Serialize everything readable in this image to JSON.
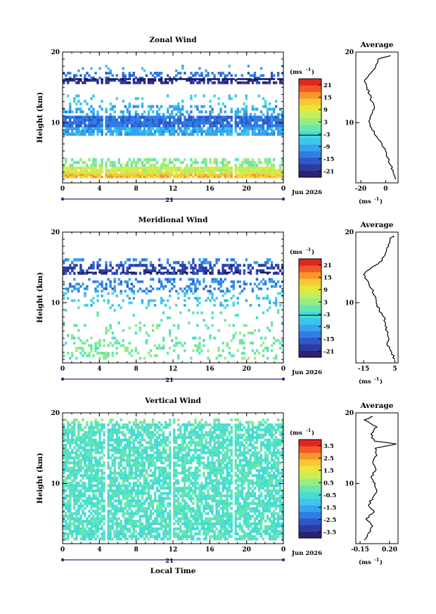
{
  "colors": {
    "scale": [
      "#2b2270",
      "#2e3aa0",
      "#2e58c8",
      "#2f7ee6",
      "#37a3f0",
      "#3cc6ee",
      "#45dcd6",
      "#66e6b0",
      "#99ec80",
      "#c6ee58",
      "#e8e63c",
      "#f8c832",
      "#f8962c",
      "#f25828",
      "#e0261f"
    ],
    "axis": "#000000",
    "time_axis": "#2a2a80"
  },
  "chart_data": [
    {
      "type": "heatmap",
      "title": "Zonal Wind",
      "ylabel": "Height (km)",
      "xlabel": "",
      "xlim": [
        0,
        24
      ],
      "ylim": [
        1.5,
        20
      ],
      "xticks": [
        "0",
        "4",
        "8",
        "12",
        "16",
        "20",
        "0"
      ],
      "yticks": [
        "10",
        "20"
      ],
      "date_label": "21",
      "month_label": "Jun 2026",
      "colorbar": {
        "unit": "(ms",
        "unit_exp": "-1",
        "unit_close": ")",
        "range": [
          -24,
          24
        ],
        "ticks": [
          "21",
          "15",
          "9",
          "3",
          "-3",
          "-9",
          "-15",
          "-21"
        ],
        "line_at": -3.5
      },
      "layers": [
        {
          "y": [
            2.2,
            2.8
          ],
          "value": 13,
          "coverage": 0.97
        },
        {
          "y": [
            2.8,
            3.8
          ],
          "value": 7,
          "coverage": 0.95
        },
        {
          "y": [
            3.8,
            5.0
          ],
          "value": 2,
          "coverage": 0.5
        },
        {
          "y": [
            8.2,
            9.4
          ],
          "value": -9,
          "coverage": 0.85
        },
        {
          "y": [
            9.4,
            11.0
          ],
          "value": -14,
          "coverage": 0.92
        },
        {
          "y": [
            11.0,
            12.5
          ],
          "value": -9,
          "coverage": 0.35
        },
        {
          "y": [
            12.5,
            14.0
          ],
          "value": -5,
          "coverage": 0.12
        },
        {
          "y": [
            15.5,
            16.2
          ],
          "value": -20,
          "coverage": 0.6
        },
        {
          "y": [
            16.2,
            17.2
          ],
          "value": -14,
          "coverage": 0.3
        },
        {
          "y": [
            17.2,
            18.2
          ],
          "value": -8,
          "coverage": 0.06
        }
      ],
      "dark_band": {
        "y": 16.2,
        "coverage": 0.8
      },
      "gaps_x": [
        4.6,
        18.6
      ],
      "average": {
        "title": "Average",
        "xlabel": "(ms",
        "xlabel_exp": "-1",
        "xlabel_close": ")",
        "xticks": [
          "-20",
          "0"
        ],
        "xtick_values": [
          -20,
          0
        ],
        "xlim": [
          -24,
          10
        ],
        "yticks": [
          "10",
          "20"
        ],
        "profile": [
          [
            8,
            2
          ],
          [
            6,
            3
          ],
          [
            4,
            4
          ],
          [
            2,
            5
          ],
          [
            0,
            6
          ],
          [
            -3,
            7
          ],
          [
            -7,
            8
          ],
          [
            -11,
            9
          ],
          [
            -13,
            10
          ],
          [
            -12,
            11
          ],
          [
            -9,
            12
          ],
          [
            -11,
            13
          ],
          [
            -13,
            14
          ],
          [
            -15,
            15
          ],
          [
            -17,
            16
          ],
          [
            -12,
            17
          ],
          [
            -8,
            18
          ],
          [
            -6,
            19
          ],
          [
            4,
            19.5
          ]
        ]
      }
    },
    {
      "type": "heatmap",
      "title": "Meridional Wind",
      "ylabel": "Height (km)",
      "xlabel": "",
      "xlim": [
        0,
        24
      ],
      "ylim": [
        1.5,
        20
      ],
      "xticks": [
        "0",
        "4",
        "8",
        "12",
        "16",
        "20",
        "0"
      ],
      "yticks": [
        "10",
        "20"
      ],
      "date_label": "21",
      "month_label": "Jun 2026",
      "colorbar": {
        "unit": "(ms",
        "unit_exp": "-1",
        "unit_close": ")",
        "range": [
          -24,
          24
        ],
        "ticks": [
          "21",
          "15",
          "9",
          "3",
          "-3",
          "-9",
          "-15",
          "-21"
        ],
        "line_at": -3.5
      },
      "layers": [
        {
          "y": [
            2.0,
            4.5
          ],
          "value": 1,
          "coverage": 0.22
        },
        {
          "y": [
            4.5,
            7.0
          ],
          "value": 0,
          "coverage": 0.1
        },
        {
          "y": [
            7.0,
            9.5
          ],
          "value": -2,
          "coverage": 0.06
        },
        {
          "y": [
            9.5,
            11.5
          ],
          "value": -6,
          "coverage": 0.2
        },
        {
          "y": [
            11.5,
            13.5
          ],
          "value": -12,
          "coverage": 0.3
        },
        {
          "y": [
            14.0,
            15.5
          ],
          "value": -18,
          "coverage": 0.55
        },
        {
          "y": [
            15.5,
            16.3
          ],
          "value": -12,
          "coverage": 0.3
        }
      ],
      "dark_band": {
        "y": 14.3,
        "coverage": 0.3
      },
      "gaps_x": [],
      "average": {
        "title": "Average",
        "xlabel": "(ms",
        "xlabel_exp": "-1",
        "xlabel_close": ")",
        "xticks": [
          "-15",
          "5"
        ],
        "xtick_values": [
          -15,
          5
        ],
        "xlim": [
          -20,
          7
        ],
        "yticks": [
          "10",
          "20"
        ],
        "profile": [
          [
            5,
            2
          ],
          [
            3,
            3
          ],
          [
            0,
            4
          ],
          [
            1,
            5
          ],
          [
            0,
            6
          ],
          [
            -1,
            7
          ],
          [
            -2,
            8
          ],
          [
            -5,
            9
          ],
          [
            -7,
            10
          ],
          [
            -8,
            11
          ],
          [
            -10,
            12
          ],
          [
            -12,
            13
          ],
          [
            -15,
            14
          ],
          [
            -10,
            15
          ],
          [
            -3,
            16
          ],
          [
            -1,
            17
          ],
          [
            1,
            18
          ],
          [
            2,
            19
          ],
          [
            4,
            19.5
          ]
        ]
      }
    },
    {
      "type": "heatmap",
      "title": "Vertical Wind",
      "ylabel": "Height (km)",
      "xlabel": "Local Time",
      "xlim": [
        0,
        24
      ],
      "ylim": [
        1.5,
        20
      ],
      "xticks": [
        "0",
        "4",
        "8",
        "12",
        "16",
        "20",
        "0"
      ],
      "yticks": [
        "10",
        "20"
      ],
      "date_label": "21",
      "month_label": "Jun 2026",
      "colorbar": {
        "unit": "(ms",
        "unit_exp": "-1",
        "unit_close": ")",
        "range": [
          -4,
          4
        ],
        "ticks": [
          "3.5",
          "2.5",
          "1.5",
          "0.5",
          "-0.5",
          "-1.5",
          "-2.5",
          "-3.5"
        ],
        "line_at": null
      },
      "layers": [
        {
          "y": [
            2.0,
            18.5
          ],
          "value": -0.3,
          "coverage": 0.72
        },
        {
          "y": [
            18.5,
            19.2
          ],
          "value": 0.2,
          "coverage": 0.3
        }
      ],
      "dark_band": null,
      "gaps_x": [
        4.7,
        11.8,
        18.6
      ],
      "average": {
        "title": "Average",
        "xlabel": "(ms",
        "xlabel_exp": "-1",
        "xlabel_close": ")",
        "xticks": [
          "-0.15",
          "0.20"
        ],
        "xtick_values": [
          -0.15,
          0.2
        ],
        "xlim": [
          -0.2,
          0.3
        ],
        "yticks": [
          "10",
          "20"
        ],
        "profile": [
          [
            -0.1,
            2
          ],
          [
            -0.05,
            3
          ],
          [
            0.0,
            4
          ],
          [
            -0.08,
            5
          ],
          [
            0.02,
            6
          ],
          [
            -0.05,
            7
          ],
          [
            0.0,
            8
          ],
          [
            0.05,
            9
          ],
          [
            0.03,
            10
          ],
          [
            -0.02,
            11
          ],
          [
            0.04,
            12
          ],
          [
            0.0,
            13
          ],
          [
            0.05,
            14
          ],
          [
            0.03,
            15
          ],
          [
            0.28,
            15.6
          ],
          [
            0.02,
            16
          ],
          [
            -0.02,
            17
          ],
          [
            0.05,
            18
          ],
          [
            -0.1,
            19
          ],
          [
            0.0,
            19.5
          ]
        ]
      }
    }
  ]
}
